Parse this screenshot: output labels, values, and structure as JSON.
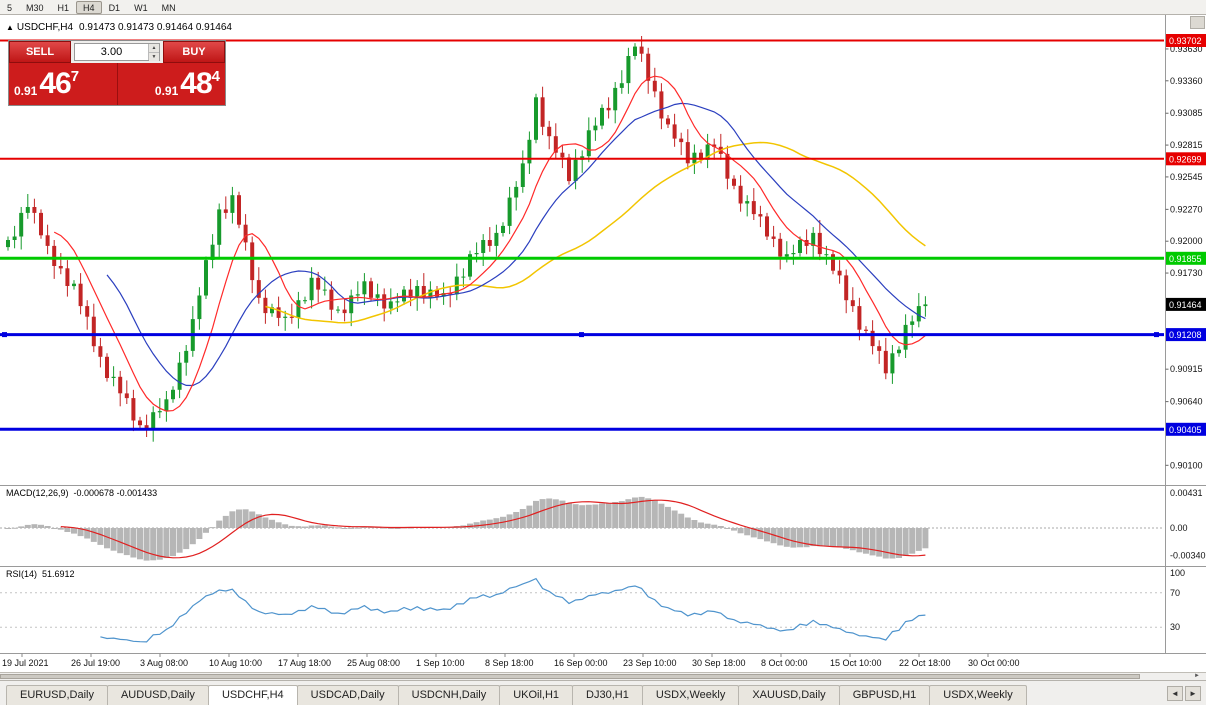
{
  "colors": {
    "candle_up": "#179a2c",
    "candle_down": "#c22525",
    "ma_fast": "#ff2a2a",
    "ma_mid": "#2b3fbf",
    "ma_slow": "#f2c500",
    "line_red": "#e60000",
    "line_green": "#00ca00",
    "line_blue": "#0000e0",
    "macd_hist": "#b6b6b6",
    "macd_signal": "#e02020",
    "rsi_line": "#4f94cd",
    "current_price_bg": "#000000"
  },
  "toolbar": {
    "timeframes": [
      {
        "label": "5",
        "active": false
      },
      {
        "label": "M30",
        "active": false
      },
      {
        "label": "H1",
        "active": false
      },
      {
        "label": "H4",
        "active": true
      },
      {
        "label": "D1",
        "active": false
      },
      {
        "label": "W1",
        "active": false
      },
      {
        "label": "MN",
        "active": false
      }
    ]
  },
  "chart_header": {
    "marker": "▲",
    "symbol": "USDCHF,H4",
    "ohlc": "0.91473 0.91473 0.91464 0.91464"
  },
  "trade_panel": {
    "sell_label": "SELL",
    "buy_label": "BUY",
    "volume": "3.00",
    "spinner_up": "▲",
    "spinner_down": "▼",
    "sell_price": {
      "prefix": "0.91",
      "big": "46",
      "sup": "7"
    },
    "buy_price": {
      "prefix": "0.91",
      "big": "48",
      "sup": "4"
    }
  },
  "chart_data": {
    "type": "candlestick",
    "symbol": "USDCHF",
    "timeframe": "H4",
    "price_range": {
      "max": 0.9385,
      "min": 0.8995
    },
    "ma_periods": {
      "fast": 8,
      "mid": 16,
      "slow": 40
    },
    "closes": [
      0.9201,
      0.9204,
      0.9224,
      0.9229,
      0.9224,
      0.9205,
      0.9196,
      0.9179,
      0.9177,
      0.9162,
      0.9164,
      0.9145,
      0.9136,
      0.9111,
      0.9102,
      0.9084,
      0.9085,
      0.9071,
      0.9067,
      0.9048,
      0.9044,
      0.9041,
      0.9055,
      0.9056,
      0.9066,
      0.9074,
      0.9097,
      0.9107,
      0.9134,
      0.9154,
      0.9184,
      0.9197,
      0.9227,
      0.9224,
      0.9239,
      0.9214,
      0.9199,
      0.9167,
      0.9152,
      0.9139,
      0.9144,
      0.9135,
      0.9136,
      0.9135,
      0.915,
      0.915,
      0.9169,
      0.9159,
      0.9159,
      0.9142,
      0.9142,
      0.9139,
      0.9154,
      0.9155,
      0.9166,
      0.9152,
      0.9155,
      0.9143,
      0.9149,
      0.9149,
      0.9159,
      0.9152,
      0.9162,
      0.9152,
      0.9159,
      0.9153,
      0.9156,
      0.9155,
      0.917,
      0.917,
      0.9189,
      0.919,
      0.9201,
      0.9196,
      0.9207,
      0.9213,
      0.9237,
      0.9246,
      0.9266,
      0.9286,
      0.9322,
      0.9297,
      0.9289,
      0.9275,
      0.9271,
      0.9251,
      0.9269,
      0.9272,
      0.9294,
      0.9298,
      0.9313,
      0.9311,
      0.933,
      0.9334,
      0.9357,
      0.9365,
      0.9359,
      0.9336,
      0.9327,
      0.9304,
      0.9299,
      0.9287,
      0.9284,
      0.9266,
      0.9275,
      0.9269,
      0.9282,
      0.928,
      0.9274,
      0.9253,
      0.9247,
      0.9232,
      0.9234,
      0.9223,
      0.9221,
      0.9204,
      0.9202,
      0.9187,
      0.9189,
      0.919,
      0.9201,
      0.9196,
      0.9207,
      0.9189,
      0.9189,
      0.9175,
      0.9171,
      0.915,
      0.9145,
      0.9125,
      0.9124,
      0.9111,
      0.9107,
      0.9088,
      0.9105,
      0.9108,
      0.9129,
      0.9132,
      0.9145,
      0.91464
    ],
    "hlines": [
      {
        "price": 0.93702,
        "label": "0.93702",
        "color": "line_red",
        "width": 2,
        "selected": false
      },
      {
        "price": 0.92699,
        "label": "0.92699",
        "color": "line_red",
        "width": 2,
        "selected": false
      },
      {
        "price": 0.91855,
        "label": "0.91855",
        "color": "line_green",
        "width": 3,
        "selected": false
      },
      {
        "price": 0.91208,
        "label": "0.91208",
        "color": "line_blue",
        "width": 3,
        "selected": true
      },
      {
        "price": 0.90405,
        "label": "0.90405",
        "color": "line_blue",
        "width": 3,
        "selected": false
      }
    ],
    "current_price": {
      "price": 0.91464,
      "label": "0.91464"
    },
    "price_ticks": [
      {
        "label": "0.93630",
        "price": 0.9363
      },
      {
        "label": "0.93360",
        "price": 0.9336
      },
      {
        "label": "0.93085",
        "price": 0.93085
      },
      {
        "label": "0.92815",
        "price": 0.92815
      },
      {
        "label": "0.92545",
        "price": 0.92545
      },
      {
        "label": "0.92270",
        "price": 0.9227
      },
      {
        "label": "0.92000",
        "price": 0.92
      },
      {
        "label": "0.91730",
        "price": 0.9173
      },
      {
        "label": "0.90915",
        "price": 0.90915
      },
      {
        "label": "0.90640",
        "price": 0.9064
      },
      {
        "label": "0.90100",
        "price": 0.901
      }
    ],
    "time_labels": [
      "19 Jul 2021",
      "26 Jul 19:00",
      "3 Aug 08:00",
      "10 Aug 10:00",
      "17 Aug 18:00",
      "25 Aug 08:00",
      "1 Sep 10:00",
      "8 Sep 18:00",
      "16 Sep 00:00",
      "23 Sep 10:00",
      "30 Sep 18:00",
      "8 Oct 00:00",
      "15 Oct 10:00",
      "22 Oct 18:00",
      "30 Oct 00:00"
    ],
    "indicators": {
      "macd": {
        "name": "MACD(12,26,9)",
        "values": "-0.000678 -0.001433",
        "fast": 12,
        "slow": 26,
        "signal": 9,
        "axis": [
          {
            "label": "0.00431",
            "value": 0.00431
          },
          {
            "label": "0.00",
            "value": 0
          },
          {
            "label": "-0.00340",
            "value": -0.0034
          }
        ]
      },
      "rsi": {
        "name": "RSI(14)",
        "value": "51.6912",
        "period": 14,
        "levels": [
          70,
          30
        ],
        "axis": [
          {
            "label": "100",
            "value": 100
          },
          {
            "label": "70",
            "value": 70
          },
          {
            "label": "30",
            "value": 30
          }
        ]
      }
    }
  },
  "scrollbar": {
    "right_arrow": "►"
  },
  "tabs": {
    "prev": "◄",
    "next": "►",
    "items": [
      {
        "label": "EURUSD,Daily",
        "active": false
      },
      {
        "label": "AUDUSD,Daily",
        "active": false
      },
      {
        "label": "USDCHF,H4",
        "active": true
      },
      {
        "label": "USDCAD,Daily",
        "active": false
      },
      {
        "label": "USDCNH,Daily",
        "active": false
      },
      {
        "label": "UKOil,H1",
        "active": false
      },
      {
        "label": "DJ30,H1",
        "active": false
      },
      {
        "label": "USDX,Weekly",
        "active": false
      },
      {
        "label": "XAUUSD,Daily",
        "active": false
      },
      {
        "label": "GBPUSD,H1",
        "active": false
      },
      {
        "label": "USDX,Weekly",
        "active": false
      }
    ]
  }
}
